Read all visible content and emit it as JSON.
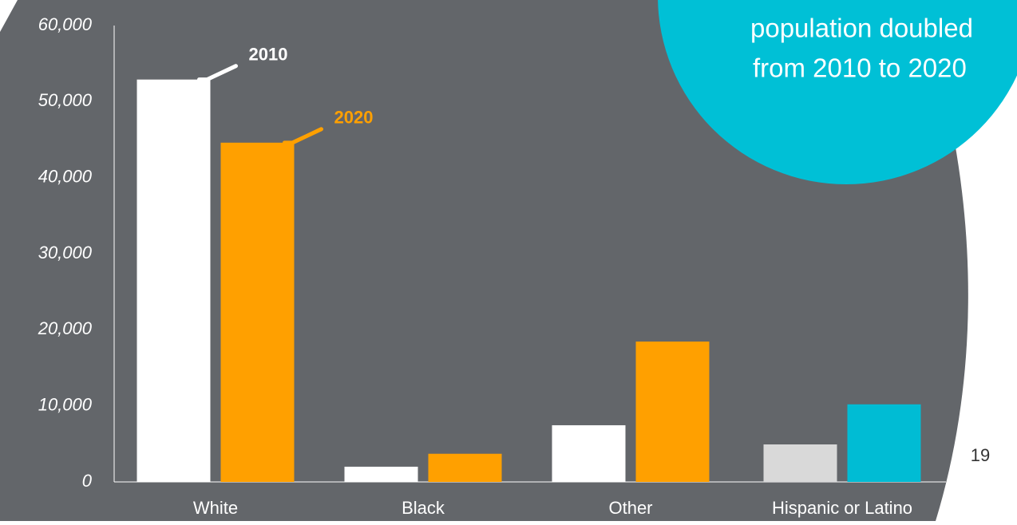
{
  "chart_data": {
    "type": "bar",
    "categories": [
      "White",
      "Black",
      "Other",
      "Hispanic or Latino"
    ],
    "series": [
      {
        "name": "2010",
        "color": "#ffffff",
        "colors": [
          "#ffffff",
          "#ffffff",
          "#ffffff",
          "#d9d9d9"
        ],
        "values": [
          52900,
          2000,
          7450,
          4930
        ]
      },
      {
        "name": "2020",
        "color": "#ffa000",
        "colors": [
          "#ffa000",
          "#ffa000",
          "#ffa000",
          "#00bcd4"
        ],
        "values": [
          44600,
          3700,
          18450,
          10200
        ]
      }
    ],
    "ylim": [
      0,
      60000
    ],
    "yticks": [
      {
        "value": 0,
        "label": "0"
      },
      {
        "value": 10000,
        "label": "10,000"
      },
      {
        "value": 20000,
        "label": "20,000"
      },
      {
        "value": 30000,
        "label": "30,000"
      },
      {
        "value": 40000,
        "label": "40,000"
      },
      {
        "value": 50000,
        "label": "50,000"
      },
      {
        "value": 60000,
        "label": "60,000"
      }
    ],
    "annotations": [
      "population doubled",
      "from 2010 to 2020"
    ],
    "page_number": "19"
  }
}
